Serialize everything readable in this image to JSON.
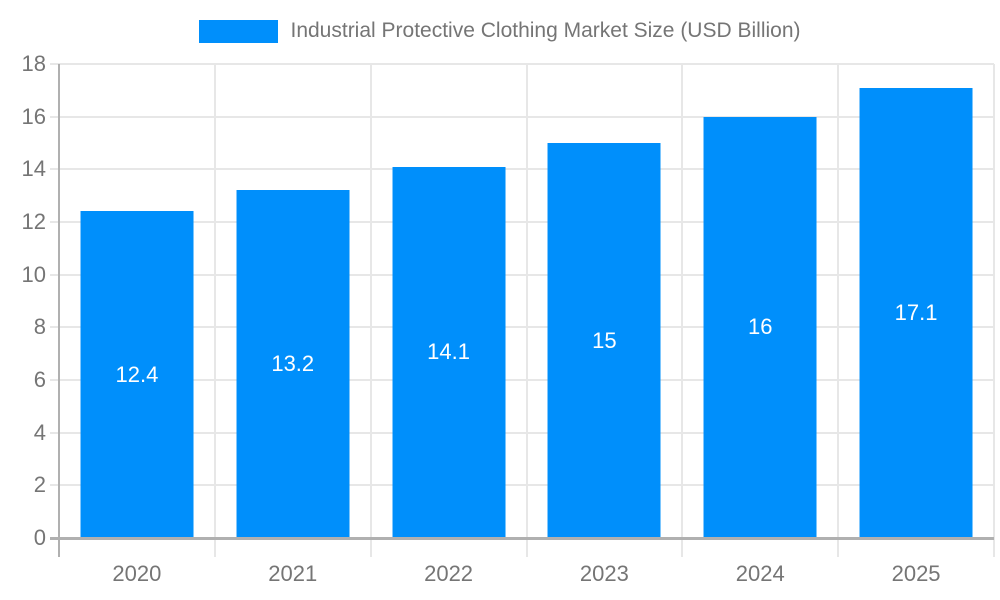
{
  "legend": {
    "label": "Industrial Protective Clothing Market Size (USD Billion)"
  },
  "chart_data": {
    "type": "bar",
    "title": "Industrial Protective Clothing Market Size (USD Billion)",
    "xlabel": "",
    "ylabel": "",
    "categories": [
      "2020",
      "2021",
      "2022",
      "2023",
      "2024",
      "2025"
    ],
    "values": [
      12.4,
      13.2,
      14.1,
      15,
      16,
      17.1
    ],
    "value_labels": [
      "12.4",
      "13.2",
      "14.1",
      "15",
      "16",
      "17.1"
    ],
    "ylim": [
      0,
      18
    ],
    "yticks": [
      0,
      2,
      4,
      6,
      8,
      10,
      12,
      14,
      16,
      18
    ],
    "grid": true,
    "legend_position": "top",
    "colors": {
      "bar": "#008ffb",
      "bar_label": "#ffffff",
      "axis_text": "#757575",
      "gridline": "#e7e7e7",
      "axis_line": "#b0b0b0"
    }
  }
}
